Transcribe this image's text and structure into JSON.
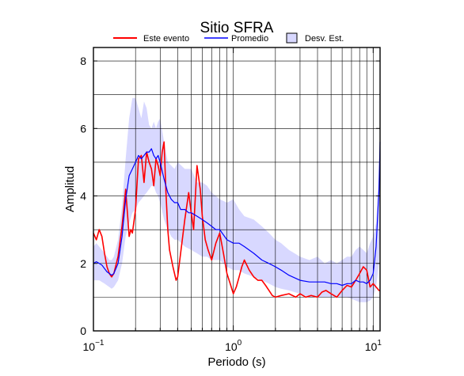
{
  "chart_data": {
    "type": "line",
    "title": "Sitio SFRA",
    "xlabel": "Periodo (s)",
    "ylabel": "Amplitud",
    "xscale": "log",
    "xlim": [
      0.1,
      11.2
    ],
    "ylim": [
      0,
      8.4
    ],
    "x_ticks": [
      {
        "value": 0.1,
        "base": "10",
        "exp": "−1"
      },
      {
        "value": 1,
        "base": "10",
        "exp": "0"
      },
      {
        "value": 10,
        "base": "10",
        "exp": "1"
      }
    ],
    "y_ticks": [
      {
        "value": 0,
        "label": "0"
      },
      {
        "value": 2,
        "label": "2"
      },
      {
        "value": 4,
        "label": "4"
      },
      {
        "value": 6,
        "label": "6"
      },
      {
        "value": 8,
        "label": "8"
      }
    ],
    "grid": true,
    "legend_position": "top",
    "legend": [
      {
        "label": "Este evento",
        "kind": "line",
        "color": "#ff0000"
      },
      {
        "label": "Promedio",
        "kind": "line",
        "color": "#0000ff"
      },
      {
        "label": "Desv. Est.",
        "kind": "patch",
        "color": "#d8d8ff"
      }
    ],
    "series": [
      {
        "name": "Este evento",
        "color": "#ff0000",
        "x": [
          0.1,
          0.105,
          0.11,
          0.115,
          0.12,
          0.125,
          0.13,
          0.135,
          0.14,
          0.15,
          0.16,
          0.17,
          0.175,
          0.18,
          0.185,
          0.19,
          0.2,
          0.21,
          0.22,
          0.23,
          0.24,
          0.25,
          0.26,
          0.27,
          0.28,
          0.29,
          0.3,
          0.31,
          0.32,
          0.33,
          0.34,
          0.35,
          0.37,
          0.39,
          0.4,
          0.42,
          0.45,
          0.48,
          0.5,
          0.52,
          0.55,
          0.58,
          0.6,
          0.63,
          0.66,
          0.7,
          0.75,
          0.8,
          0.85,
          0.9,
          0.95,
          1.0,
          1.05,
          1.1,
          1.15,
          1.2,
          1.3,
          1.4,
          1.5,
          1.6,
          1.7,
          1.8,
          1.9,
          2.0,
          2.2,
          2.5,
          2.8,
          3.0,
          3.3,
          3.6,
          4.0,
          4.3,
          4.6,
          5.0,
          5.5,
          6.0,
          6.5,
          7.0,
          7.5,
          8.0,
          8.5,
          9.0,
          9.5,
          10.0,
          10.5,
          11.0,
          11.2
        ],
        "y": [
          2.9,
          2.7,
          3.0,
          2.8,
          2.3,
          1.9,
          1.7,
          1.6,
          1.7,
          2.2,
          3.1,
          4.2,
          3.5,
          2.8,
          3.0,
          2.9,
          3.6,
          5.1,
          5.2,
          4.4,
          5.3,
          5.0,
          4.8,
          4.3,
          5.1,
          4.9,
          4.6,
          5.3,
          5.6,
          4.1,
          3.0,
          2.4,
          1.9,
          1.5,
          1.6,
          2.3,
          3.3,
          4.1,
          3.5,
          3.0,
          4.9,
          4.2,
          3.4,
          2.7,
          2.4,
          2.1,
          2.6,
          2.9,
          2.3,
          1.7,
          1.4,
          1.1,
          1.3,
          1.6,
          1.9,
          2.1,
          1.8,
          1.6,
          1.5,
          1.5,
          1.35,
          1.2,
          1.05,
          1.0,
          1.05,
          1.1,
          1.0,
          1.1,
          1.0,
          1.05,
          1.0,
          1.15,
          1.2,
          1.1,
          1.0,
          1.2,
          1.35,
          1.3,
          1.5,
          1.7,
          1.9,
          1.8,
          1.3,
          1.4,
          1.3,
          1.2,
          1.2
        ]
      },
      {
        "name": "Promedio",
        "color": "#0000ff",
        "x": [
          0.1,
          0.105,
          0.11,
          0.115,
          0.12,
          0.125,
          0.13,
          0.135,
          0.14,
          0.15,
          0.16,
          0.17,
          0.18,
          0.19,
          0.2,
          0.21,
          0.22,
          0.23,
          0.24,
          0.25,
          0.26,
          0.27,
          0.28,
          0.29,
          0.3,
          0.32,
          0.34,
          0.36,
          0.38,
          0.4,
          0.42,
          0.45,
          0.48,
          0.5,
          0.55,
          0.6,
          0.65,
          0.7,
          0.75,
          0.8,
          0.9,
          1.0,
          1.1,
          1.2,
          1.4,
          1.6,
          1.8,
          2.0,
          2.2,
          2.5,
          3.0,
          3.5,
          4.0,
          4.5,
          5.0,
          5.5,
          6.0,
          6.5,
          7.0,
          7.5,
          8.0,
          8.5,
          9.0,
          9.5,
          10.0,
          10.5,
          11.0,
          11.2
        ],
        "y": [
          2.0,
          2.05,
          2.0,
          1.95,
          1.85,
          1.75,
          1.7,
          1.65,
          1.7,
          2.0,
          2.8,
          3.9,
          4.6,
          4.8,
          5.0,
          5.2,
          5.1,
          5.2,
          5.3,
          5.3,
          5.4,
          5.2,
          5.1,
          5.2,
          5.0,
          4.5,
          4.1,
          3.9,
          3.8,
          3.8,
          3.6,
          3.6,
          3.5,
          3.5,
          3.4,
          3.3,
          3.2,
          3.1,
          3.0,
          3.0,
          2.7,
          2.6,
          2.6,
          2.5,
          2.3,
          2.1,
          2.0,
          1.9,
          1.8,
          1.65,
          1.5,
          1.45,
          1.45,
          1.45,
          1.4,
          1.4,
          1.35,
          1.4,
          1.4,
          1.5,
          1.45,
          1.45,
          1.4,
          1.5,
          1.7,
          2.5,
          4.2,
          5.6
        ]
      }
    ],
    "band": {
      "name": "Desv. Est.",
      "color": "#d8d8ff",
      "x": [
        0.1,
        0.105,
        0.11,
        0.115,
        0.12,
        0.125,
        0.13,
        0.135,
        0.14,
        0.15,
        0.16,
        0.17,
        0.18,
        0.19,
        0.2,
        0.21,
        0.22,
        0.23,
        0.24,
        0.25,
        0.26,
        0.27,
        0.28,
        0.29,
        0.3,
        0.32,
        0.34,
        0.36,
        0.38,
        0.4,
        0.45,
        0.5,
        0.55,
        0.6,
        0.65,
        0.7,
        0.75,
        0.8,
        0.9,
        1.0,
        1.1,
        1.2,
        1.4,
        1.6,
        1.8,
        2.0,
        2.2,
        2.5,
        3.0,
        3.5,
        4.0,
        4.5,
        5.0,
        5.5,
        6.0,
        6.5,
        7.0,
        7.5,
        8.0,
        8.5,
        9.0,
        9.5,
        10.0,
        10.5,
        11.0,
        11.2
      ],
      "upper": [
        2.5,
        2.6,
        2.5,
        2.4,
        2.3,
        2.2,
        2.1,
        2.1,
        2.2,
        2.7,
        3.7,
        5.1,
        6.3,
        6.9,
        6.9,
        6.6,
        6.3,
        6.8,
        6.6,
        6.1,
        6.0,
        6.2,
        6.0,
        6.2,
        6.3,
        5.6,
        5.0,
        4.9,
        4.8,
        5.0,
        4.8,
        4.8,
        4.4,
        4.4,
        4.3,
        4.1,
        4.0,
        3.9,
        3.8,
        3.9,
        3.6,
        3.4,
        3.3,
        3.1,
        2.9,
        2.7,
        2.6,
        2.4,
        2.2,
        2.1,
        2.2,
        2.0,
        2.1,
        2.0,
        2.1,
        2.2,
        2.2,
        2.4,
        2.5,
        2.4,
        2.3,
        2.6,
        2.8,
        3.2,
        4.6,
        6.5
      ],
      "lower": [
        1.5,
        1.5,
        1.5,
        1.45,
        1.4,
        1.35,
        1.3,
        1.25,
        1.3,
        1.5,
        2.0,
        2.8,
        3.2,
        3.5,
        3.6,
        3.8,
        3.9,
        4.0,
        4.1,
        4.2,
        4.3,
        4.3,
        4.1,
        4.0,
        3.8,
        3.3,
        3.0,
        2.8,
        2.7,
        2.7,
        2.5,
        2.4,
        2.3,
        2.2,
        2.2,
        2.1,
        2.1,
        2.1,
        1.9,
        1.8,
        1.8,
        1.7,
        1.6,
        1.5,
        1.4,
        1.3,
        1.25,
        1.2,
        1.1,
        1.0,
        1.0,
        1.0,
        1.0,
        1.0,
        1.0,
        1.0,
        0.95,
        0.9,
        0.85,
        0.85,
        0.85,
        0.9,
        1.0,
        1.3,
        2.0,
        3.0
      ]
    }
  }
}
